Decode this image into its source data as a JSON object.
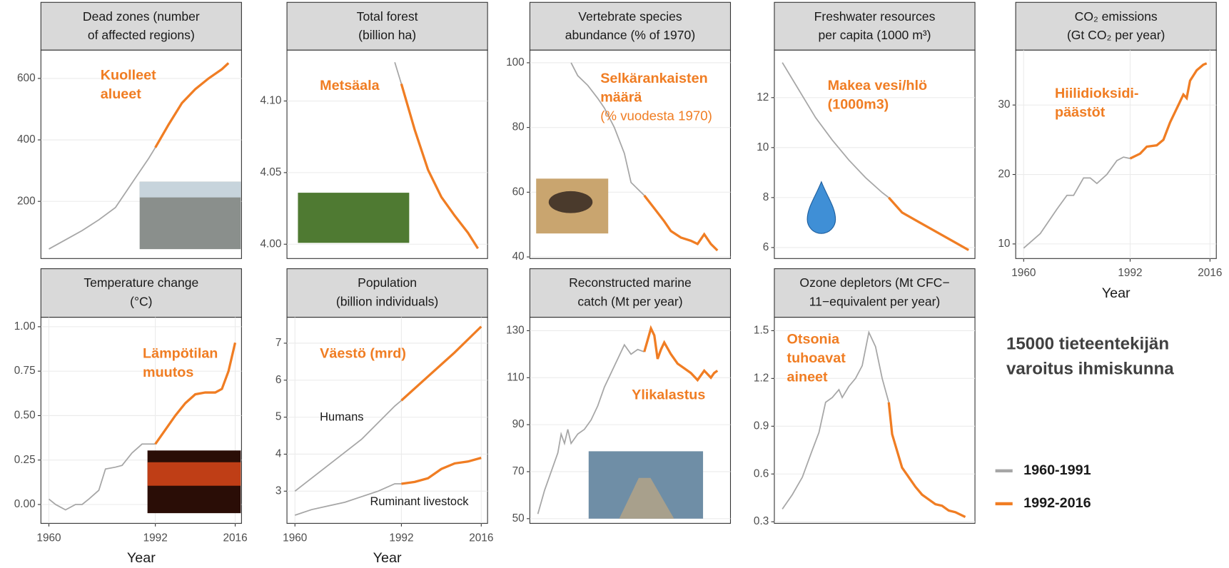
{
  "headline": [
    "15000 tieteentekijän",
    "varoitus ihmiskunna"
  ],
  "legend": [
    {
      "name": "1960-1991",
      "color": "#a6a6a6"
    },
    {
      "name": "1992-2016",
      "color": "#f07d23"
    }
  ],
  "chart_data": [
    {
      "type": "line",
      "title": [
        "Dead zones (number",
        "of affected regions)"
      ],
      "annotation": [
        "Kuolleet",
        "alueet"
      ],
      "xlim": [
        1957.6,
        2017.9
      ],
      "ylim": [
        14,
        692
      ],
      "yticks": [
        200,
        400,
        600
      ],
      "grid": true,
      "series": [
        {
          "color": "#a6a6a6",
          "x": [
            1960,
            1965,
            1970,
            1975,
            1980,
            1985,
            1990,
            1992
          ],
          "values": [
            45,
            75,
            105,
            140,
            180,
            260,
            340,
            375
          ]
        },
        {
          "color": "#f07d23",
          "x": [
            1992,
            1996,
            2000,
            2004,
            2008,
            2012,
            2014
          ],
          "values": [
            375,
            450,
            520,
            565,
            600,
            630,
            650
          ]
        }
      ]
    },
    {
      "type": "line",
      "title": [
        "Total forest",
        "(billion ha)"
      ],
      "annotation": [
        "Metsäala"
      ],
      "xlim": [
        1957.6,
        2017.9
      ],
      "ylim": [
        3.99,
        4.1355
      ],
      "yticks": [
        {
          "value": 4.0,
          "label": "4.00"
        },
        {
          "value": 4.05,
          "label": "4.05"
        },
        {
          "value": 4.1,
          "label": "4.10"
        }
      ],
      "grid": true,
      "series": [
        {
          "color": "#a6a6a6",
          "x": [
            1990,
            1992
          ],
          "values": [
            4.127,
            4.112
          ]
        },
        {
          "color": "#f07d23",
          "x": [
            1992,
            1996,
            2000,
            2004,
            2008,
            2012,
            2015
          ],
          "values": [
            4.112,
            4.08,
            4.052,
            4.033,
            4.02,
            4.008,
            3.997
          ]
        }
      ]
    },
    {
      "type": "line",
      "title": [
        "Vertebrate species",
        "abundance (% of 1970)"
      ],
      "annotation": [
        "Selkärankaisten",
        "määrä",
        "(% vuodesta 1970)"
      ],
      "xlim": [
        1957.6,
        2017.9
      ],
      "ylim": [
        39.5,
        103.9
      ],
      "yticks": [
        40,
        60,
        80,
        100
      ],
      "grid": true,
      "series": [
        {
          "color": "#a6a6a6",
          "x": [
            1970,
            1972,
            1975,
            1978,
            1980,
            1983,
            1986,
            1988,
            1990,
            1992
          ],
          "values": [
            100,
            96,
            93,
            89,
            86,
            80,
            72,
            63,
            61,
            59
          ]
        },
        {
          "color": "#f07d23",
          "x": [
            1992,
            1995,
            1998,
            2000,
            2003,
            2006,
            2008,
            2010,
            2012,
            2014
          ],
          "values": [
            59,
            55,
            51,
            48,
            46,
            45,
            44,
            47,
            44,
            42
          ]
        }
      ]
    },
    {
      "type": "line",
      "title": [
        "Freshwater resources",
        "per capita (1000 m³)"
      ],
      "annotation": [
        "Makea vesi/hlö",
        "(1000m3)"
      ],
      "xlim": [
        1957.6,
        2017.9
      ],
      "ylim": [
        5.56,
        13.9
      ],
      "yticks": [
        6,
        8,
        10,
        12
      ],
      "grid": true,
      "series": [
        {
          "color": "#a6a6a6",
          "x": [
            1960,
            1965,
            1970,
            1975,
            1980,
            1985,
            1990,
            1992
          ],
          "values": [
            13.4,
            12.3,
            11.2,
            10.3,
            9.5,
            8.8,
            8.2,
            8.0
          ]
        },
        {
          "color": "#f07d23",
          "x": [
            1992,
            1996,
            2000,
            2004,
            2008,
            2012,
            2016
          ],
          "values": [
            8.0,
            7.4,
            7.1,
            6.8,
            6.5,
            6.2,
            5.9
          ]
        }
      ]
    },
    {
      "type": "line",
      "title": [
        "CO₂ emissions",
        "(Gt CO₂ per year)"
      ],
      "annotation": [
        "Hiilidioksidi-",
        "päästöt"
      ],
      "xlabel": "Year",
      "xlim": [
        1957.6,
        2017.9
      ],
      "ylim": [
        7.9,
        37.9
      ],
      "xticks": [
        1960,
        1992,
        2016
      ],
      "yticks": [
        10,
        20,
        30
      ],
      "grid": true,
      "series": [
        {
          "color": "#a6a6a6",
          "x": [
            1960,
            1965,
            1970,
            1973,
            1975,
            1978,
            1980,
            1982,
            1985,
            1988,
            1990,
            1992
          ],
          "values": [
            9.4,
            11.5,
            15,
            17,
            17,
            19.5,
            19.5,
            18.7,
            20,
            22,
            22.5,
            22.3
          ]
        },
        {
          "color": "#f07d23",
          "x": [
            1992,
            1995,
            1997,
            2000,
            2002,
            2004,
            2006,
            2008,
            2009,
            2010,
            2012,
            2014,
            2015
          ],
          "values": [
            22.3,
            23,
            24,
            24.2,
            25,
            27.5,
            29.5,
            31.5,
            31,
            33.5,
            35,
            35.8,
            36
          ]
        }
      ]
    },
    {
      "type": "line",
      "title": [
        "Temperature change",
        "(°C)"
      ],
      "annotation": [
        "Lämpötilan",
        "muutos"
      ],
      "xlabel": "Year",
      "xlim": [
        1957.6,
        2017.9
      ],
      "ylim": [
        -0.106,
        1.053
      ],
      "xticks": [
        1960,
        1992,
        2016
      ],
      "yticks": [
        {
          "value": 0,
          "label": "0.00"
        },
        0.25,
        {
          "value": 0.5,
          "label": "0.50"
        },
        0.75,
        {
          "value": 1,
          "label": "1.00"
        }
      ],
      "grid": true,
      "series": [
        {
          "color": "#a6a6a6",
          "x": [
            1960,
            1962,
            1965,
            1968,
            1970,
            1972,
            1975,
            1977,
            1980,
            1982,
            1985,
            1988,
            1990,
            1992
          ],
          "values": [
            0.03,
            0.0,
            -0.03,
            0.0,
            0.0,
            0.03,
            0.08,
            0.2,
            0.21,
            0.22,
            0.29,
            0.34,
            0.34,
            0.34
          ]
        },
        {
          "color": "#f07d23",
          "x": [
            1992,
            1995,
            1998,
            2001,
            2004,
            2007,
            2010,
            2012,
            2014,
            2016
          ],
          "values": [
            0.34,
            0.42,
            0.5,
            0.57,
            0.62,
            0.63,
            0.63,
            0.65,
            0.75,
            0.91
          ]
        }
      ]
    },
    {
      "type": "line",
      "title": [
        "Population",
        "(billion individuals)"
      ],
      "annotation": [
        "Väestö (mrd)"
      ],
      "xlabel": "Year",
      "xlim": [
        1957.6,
        2017.9
      ],
      "ylim": [
        2.13,
        7.7
      ],
      "xticks": [
        1960,
        1992,
        2016
      ],
      "yticks": [
        3,
        4,
        5,
        6,
        7
      ],
      "grid": true,
      "series": [
        {
          "name": "Humans",
          "color": "#a6a6a6",
          "x": [
            1960,
            1970,
            1980,
            1990,
            1992
          ],
          "values": [
            3.0,
            3.7,
            4.4,
            5.3,
            5.45
          ]
        },
        {
          "color": "#f07d23",
          "x": [
            1992,
            2000,
            2008,
            2016
          ],
          "values": [
            5.45,
            6.1,
            6.75,
            7.45
          ]
        },
        {
          "name": "Ruminant livestock",
          "color": "#a6a6a6",
          "x": [
            1960,
            1965,
            1970,
            1975,
            1980,
            1985,
            1990,
            1992
          ],
          "values": [
            2.35,
            2.5,
            2.6,
            2.7,
            2.85,
            3.0,
            3.2,
            3.2
          ]
        },
        {
          "color": "#f07d23",
          "x": [
            1992,
            1996,
            2000,
            2004,
            2008,
            2012,
            2016
          ],
          "values": [
            3.2,
            3.25,
            3.35,
            3.6,
            3.75,
            3.8,
            3.9
          ]
        }
      ]
    },
    {
      "type": "line",
      "title": [
        "Reconstructed marine",
        "catch (Mt per year)"
      ],
      "annotation": [
        "Ylikalastus"
      ],
      "xlim": [
        1957.6,
        2017.9
      ],
      "ylim": [
        48,
        135.7
      ],
      "yticks": [
        50,
        70,
        90,
        110,
        130
      ],
      "grid": true,
      "series": [
        {
          "color": "#a6a6a6",
          "x": [
            1960,
            1962,
            1964,
            1966,
            1967,
            1968,
            1969,
            1970,
            1972,
            1974,
            1976,
            1978,
            1980,
            1982,
            1984,
            1986,
            1988,
            1990,
            1992
          ],
          "values": [
            52,
            62,
            70,
            78,
            86,
            82,
            88,
            82,
            86,
            88,
            92,
            98,
            106,
            112,
            118,
            124,
            120,
            122,
            121
          ]
        },
        {
          "color": "#f07d23",
          "x": [
            1992,
            1993,
            1994,
            1995,
            1996,
            1997,
            1998,
            2000,
            2002,
            2004,
            2006,
            2008,
            2010,
            2012,
            2013,
            2014
          ],
          "values": [
            121,
            126,
            131,
            128,
            118,
            122,
            125,
            120,
            116,
            114,
            112,
            109,
            113,
            110,
            112,
            113
          ]
        }
      ]
    },
    {
      "type": "line",
      "title": [
        "Ozone depletors (Mt CFC−",
        "11−equivalent per year)"
      ],
      "annotation": [
        "Otsonia",
        "tuhoavat",
        "aineet"
      ],
      "xlim": [
        1957.6,
        2017.9
      ],
      "ylim": [
        0.29,
        1.584
      ],
      "yticks": [
        0.3,
        0.6,
        0.9,
        1.2,
        1.5
      ],
      "grid": true,
      "series": [
        {
          "color": "#a6a6a6",
          "x": [
            1960,
            1963,
            1966,
            1969,
            1971,
            1973,
            1975,
            1977,
            1978,
            1980,
            1982,
            1984,
            1986,
            1988,
            1990,
            1992
          ],
          "values": [
            0.38,
            0.47,
            0.58,
            0.75,
            0.86,
            1.05,
            1.08,
            1.13,
            1.08,
            1.15,
            1.2,
            1.28,
            1.49,
            1.4,
            1.2,
            1.05
          ]
        },
        {
          "color": "#f07d23",
          "x": [
            1992,
            1993,
            1994,
            1996,
            1998,
            2000,
            2002,
            2004,
            2006,
            2008,
            2010,
            2012,
            2015
          ],
          "values": [
            1.05,
            0.85,
            0.78,
            0.64,
            0.58,
            0.52,
            0.47,
            0.44,
            0.41,
            0.4,
            0.37,
            0.36,
            0.33
          ]
        }
      ]
    }
  ]
}
